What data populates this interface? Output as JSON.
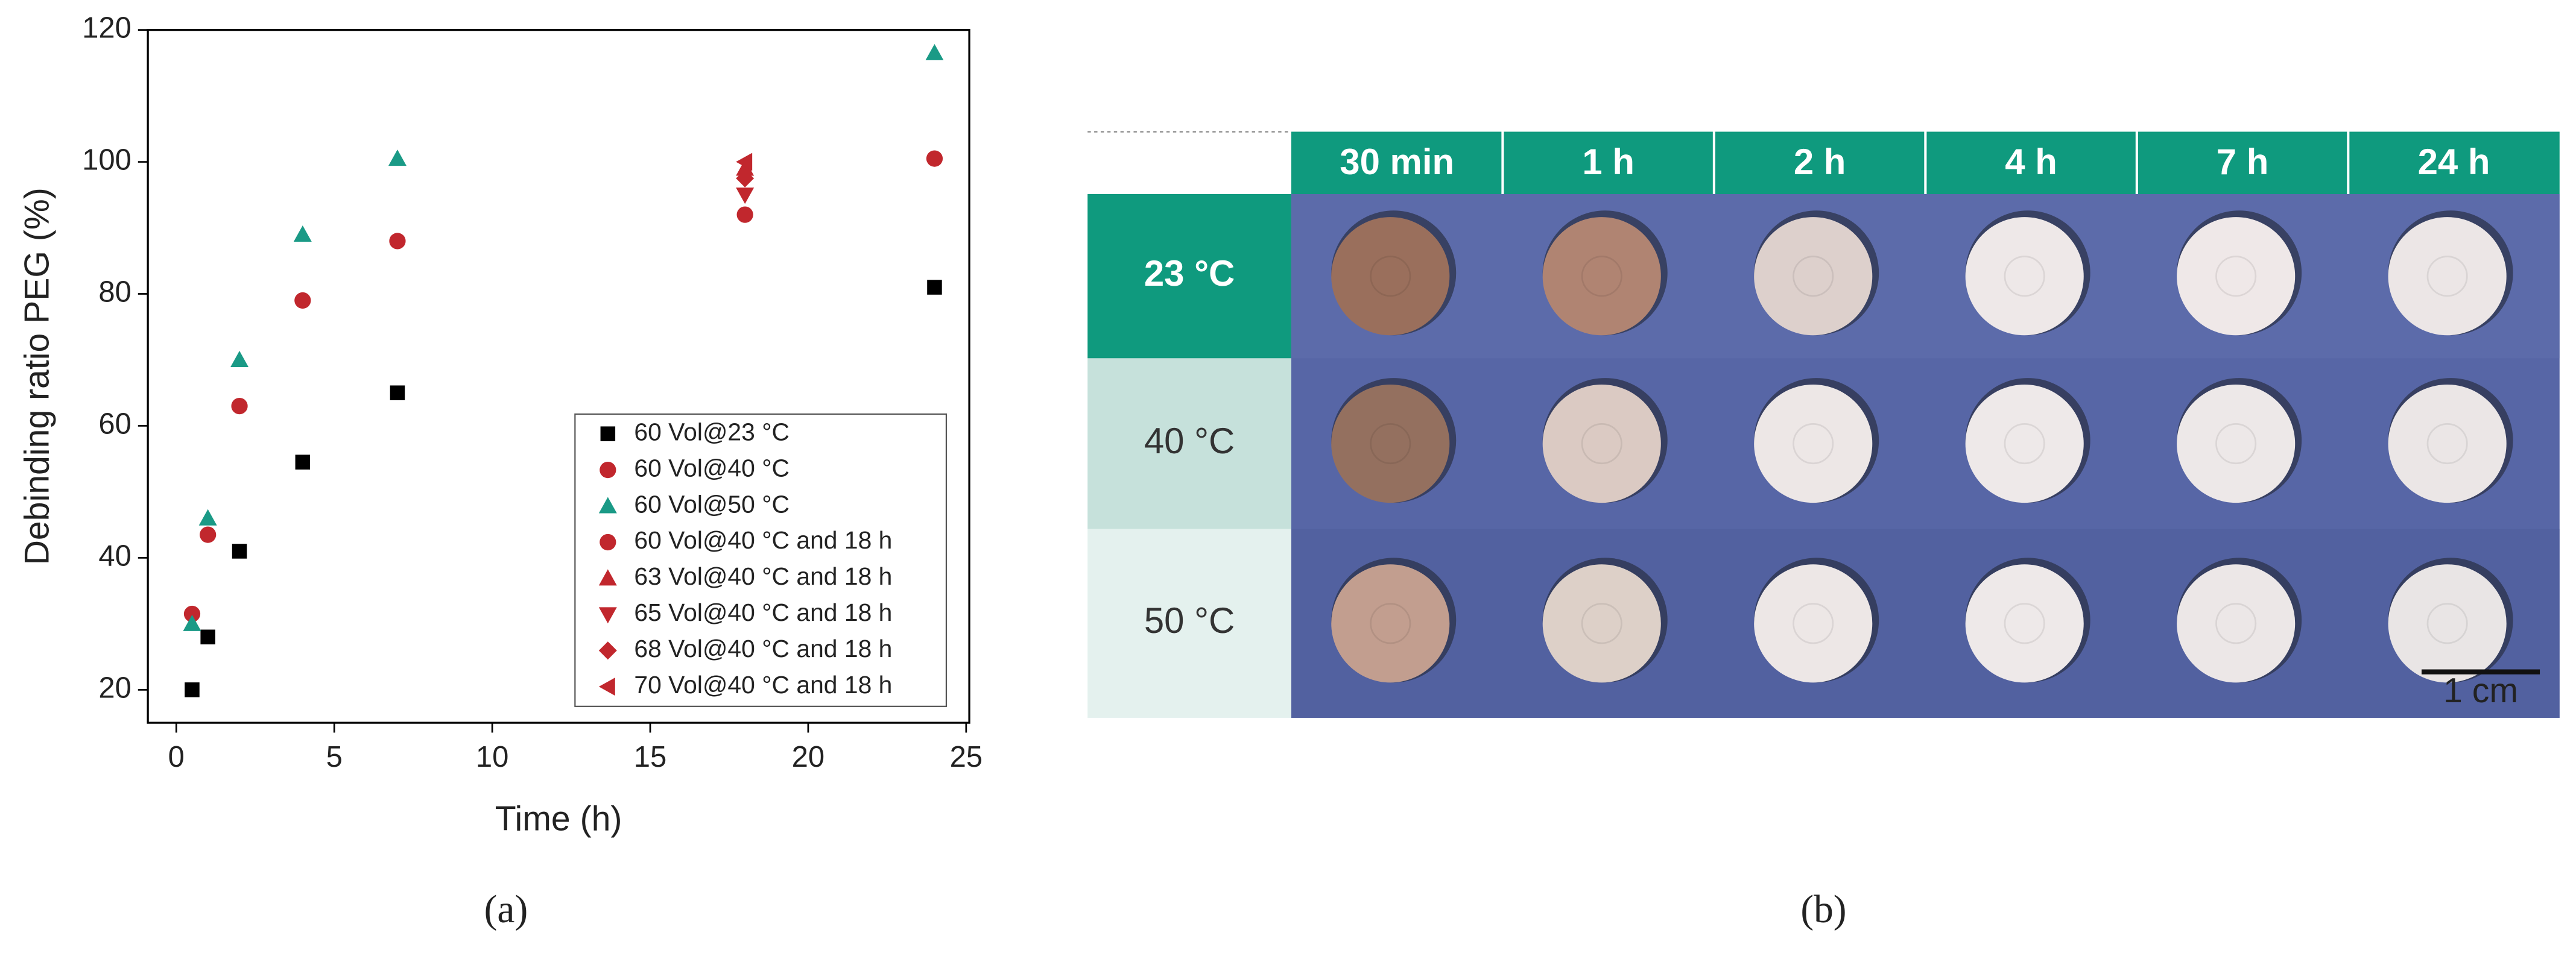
{
  "chart_data": {
    "type": "scatter",
    "xlabel": "Time (h)",
    "ylabel": "Debinding ratio PEG (%)",
    "xlim": [
      -0.9,
      25.1
    ],
    "ylim": [
      15,
      120
    ],
    "xticks": [
      0,
      5,
      10,
      15,
      20,
      25
    ],
    "yticks": [
      20,
      40,
      60,
      80,
      100,
      120
    ],
    "legend": "lower right",
    "grid": false,
    "series": [
      {
        "name": "60 Vol@23 °C",
        "color": "#000000",
        "marker": "square",
        "x": [
          0.5,
          1,
          2,
          4,
          7,
          24
        ],
        "values": [
          20,
          28,
          41,
          54.5,
          65,
          81
        ]
      },
      {
        "name": "60 Vol@40 °C",
        "color": "#c1272d",
        "marker": "circle",
        "x": [
          0.5,
          1,
          2,
          4,
          7,
          24
        ],
        "values": [
          31.5,
          43.5,
          63,
          79,
          88,
          100.5
        ]
      },
      {
        "name": "60 Vol@50 °C",
        "color": "#1a9a86",
        "marker": "triangle-up",
        "x": [
          0.5,
          1,
          2,
          4,
          7,
          24
        ],
        "values": [
          30,
          46,
          70,
          89,
          100.5,
          116.5
        ]
      },
      {
        "name": "60 Vol@40 °C and 18 h",
        "color": "#c1272d",
        "marker": "circle",
        "x": [
          18
        ],
        "values": [
          92
        ]
      },
      {
        "name": "63 Vol@40 °C and 18 h",
        "color": "#c1272d",
        "marker": "triangle-up",
        "x": [
          18
        ],
        "values": [
          99
        ]
      },
      {
        "name": "65 Vol@40 °C and 18 h",
        "color": "#c1272d",
        "marker": "triangle-down",
        "x": [
          18
        ],
        "values": [
          95
        ]
      },
      {
        "name": "68 Vol@40 °C and 18 h",
        "color": "#c1272d",
        "marker": "diamond",
        "x": [
          18
        ],
        "values": [
          97.5
        ]
      },
      {
        "name": "70 Vol@40 °C and 18 h",
        "color": "#c1272d",
        "marker": "triangle-left",
        "x": [
          18
        ],
        "values": [
          100
        ]
      }
    ]
  },
  "photo_grid": {
    "columns": [
      "30 min",
      "1 h",
      "2 h",
      "4 h",
      "7 h",
      "24 h"
    ],
    "rows": [
      "23 °C",
      "40 °C",
      "50 °C"
    ],
    "scale_bar": "1 cm"
  },
  "panel_labels": [
    "(a)",
    "(b)"
  ]
}
